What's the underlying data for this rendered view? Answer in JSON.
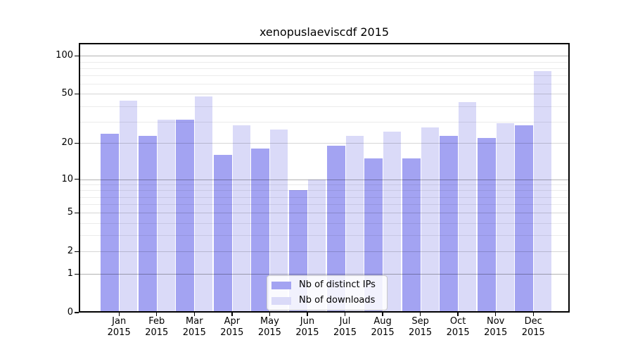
{
  "title": "xenopuslaeviscdf 2015",
  "year": "2015",
  "colors": {
    "ips_bar": "#a3a3f2",
    "downloads_bar": "#dadaf8",
    "axis": "#000000",
    "background": "#ffffff",
    "grid_decade": "#b2b2b2",
    "grid_major": "#d6d6d6",
    "grid_minor": "#ebebeb",
    "legend_border": "#c8c8c8"
  },
  "chart_data": {
    "type": "bar",
    "title": "xenopuslaeviscdf 2015",
    "categories": [
      "Jan",
      "Feb",
      "Mar",
      "Apr",
      "May",
      "Jun",
      "Jul",
      "Aug",
      "Sep",
      "Oct",
      "Nov",
      "Dec"
    ],
    "year": "2015",
    "series": [
      {
        "name": "Nb of distinct IPs",
        "color": "#a3a3f2",
        "values": [
          24,
          23,
          31,
          16,
          18,
          8,
          19,
          15,
          15,
          23,
          22,
          28
        ]
      },
      {
        "name": "Nb of downloads",
        "color": "#dadaf8",
        "values": [
          44,
          31,
          48,
          28,
          26,
          10,
          23,
          25,
          27,
          43,
          29,
          76
        ]
      }
    ],
    "xlabel": "",
    "ylabel": "",
    "yscale": "log1p",
    "ylim": [
      0,
      127
    ],
    "y_tick_labels": [
      "100",
      "50",
      "20",
      "10",
      "5",
      "2",
      "1",
      "0"
    ],
    "y_ticks": [
      100,
      50,
      20,
      10,
      5,
      2,
      1,
      0
    ],
    "y_minor_gridlines": [
      3,
      4,
      6,
      7,
      8,
      9,
      30,
      40,
      60,
      70,
      80,
      90
    ],
    "grid": true,
    "legend_position": "lower center"
  }
}
